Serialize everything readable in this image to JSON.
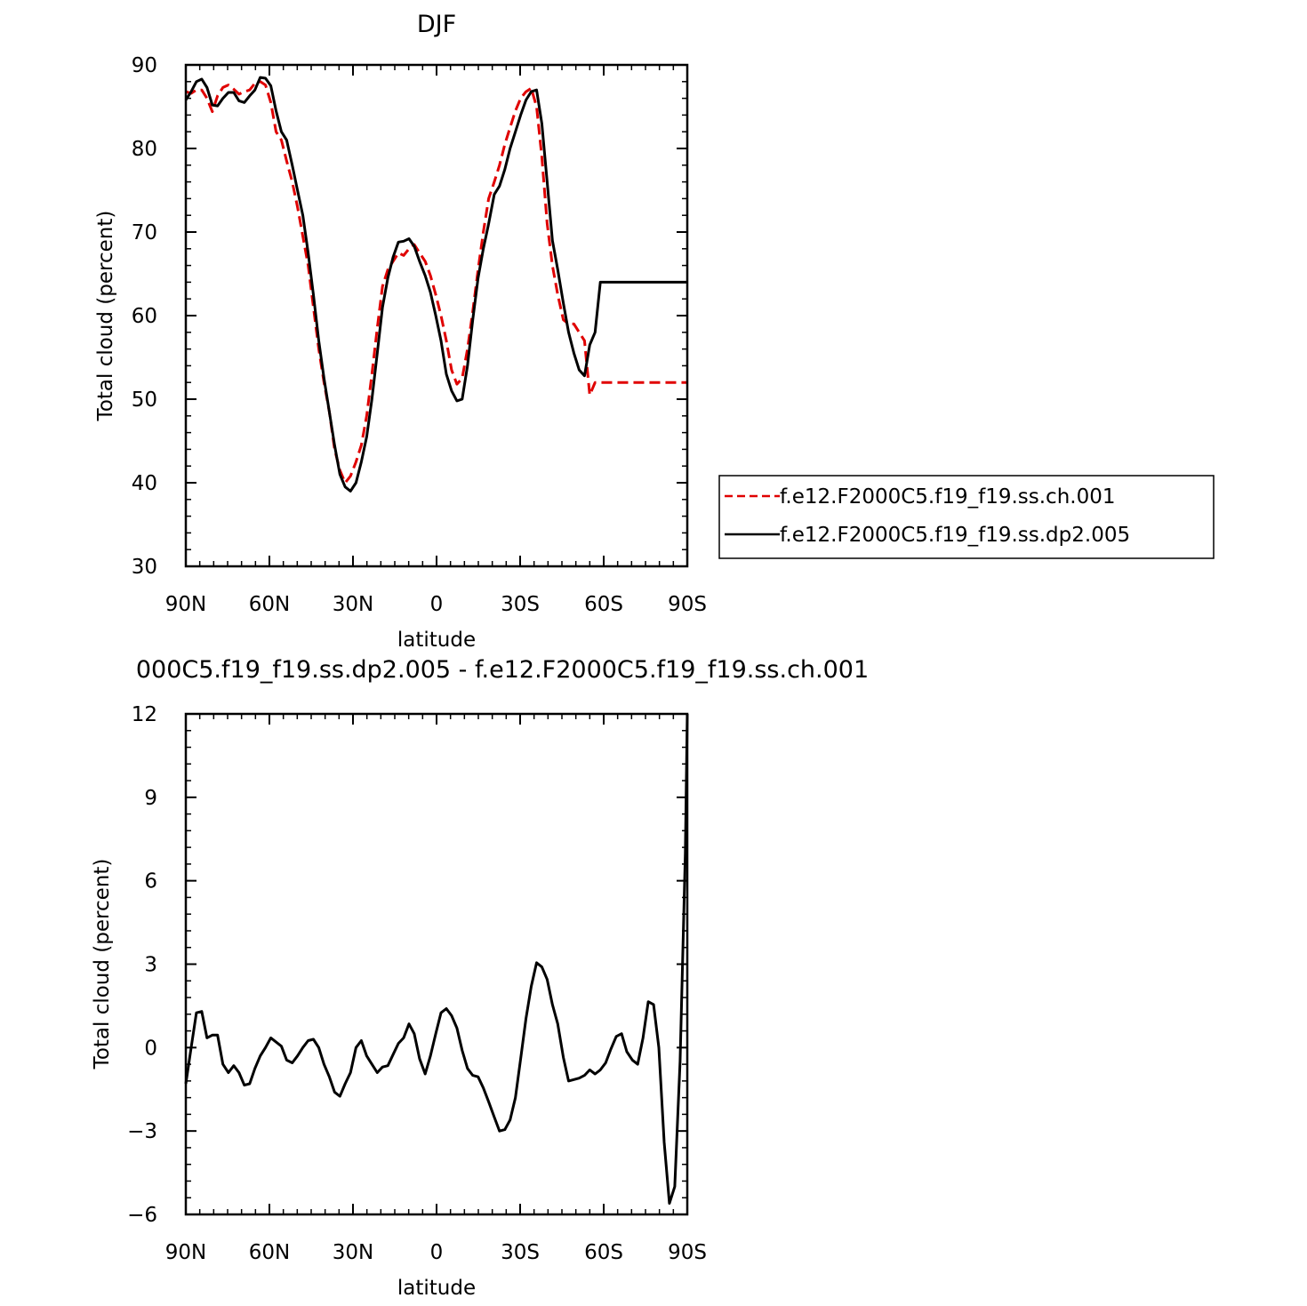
{
  "chart_data": [
    {
      "type": "line",
      "title": "DJF",
      "xlabel": "latitude",
      "ylabel": "Total cloud (percent)",
      "xlim": [
        -90,
        90
      ],
      "ylim": [
        30,
        90
      ],
      "xticks": [
        -90,
        -60,
        -30,
        0,
        30,
        60,
        90
      ],
      "xtick_labels": [
        "90N",
        "60N",
        "30N",
        "0",
        "30S",
        "60S",
        "90S"
      ],
      "yticks": [
        30,
        40,
        50,
        60,
        70,
        80,
        90
      ],
      "ytick_labels": [
        "30",
        "40",
        "50",
        "60",
        "70",
        "80",
        "90"
      ],
      "legend_position": "right",
      "x": [
        -90,
        -88.1,
        -86.2,
        -84.3,
        -82.4,
        -80.5,
        -78.6,
        -76.7,
        -74.7,
        -72.8,
        -70.9,
        -69.0,
        -67.1,
        -65.2,
        -63.3,
        -61.4,
        -59.5,
        -57.6,
        -55.7,
        -53.8,
        -51.8,
        -49.9,
        -48.0,
        -46.1,
        -44.2,
        -42.3,
        -40.4,
        -38.5,
        -36.6,
        -34.7,
        -32.8,
        -30.9,
        -28.9,
        -27.0,
        -25.1,
        -23.2,
        -21.3,
        -19.4,
        -17.5,
        -15.6,
        -13.7,
        -11.8,
        -9.9,
        -8.0,
        -6.1,
        -4.1,
        -2.2,
        -0.3,
        1.6,
        3.5,
        5.4,
        7.3,
        9.2,
        11.1,
        13.0,
        14.9,
        16.8,
        18.7,
        20.7,
        22.6,
        24.5,
        26.4,
        28.3,
        30.2,
        32.1,
        34.0,
        35.9,
        37.8,
        39.7,
        41.6,
        43.5,
        45.5,
        47.4,
        49.3,
        51.2,
        53.1,
        55.0,
        56.9,
        58.8,
        60.7,
        62.6,
        64.5,
        66.4,
        68.3,
        70.3,
        72.2,
        74.1,
        76.0,
        77.9,
        79.8,
        81.7,
        83.6,
        85.5,
        87.4,
        89.3,
        90
      ],
      "series": [
        {
          "name": "f.e12.F2000C5.f19_f19.ss.ch.001",
          "color": "#e00000",
          "dash": "dashed",
          "values": [
            86.8,
            86.6,
            87.0,
            87.0,
            86.0,
            84.4,
            86.3,
            87.3,
            87.6,
            87.1,
            86.5,
            86.8,
            87.0,
            87.8,
            88.0,
            87.6,
            85.5,
            82.0,
            81.0,
            78.5,
            76.0,
            73.0,
            69.5,
            66.0,
            61.0,
            56.0,
            52.0,
            48.5,
            44.0,
            41.5,
            40.0,
            40.8,
            42.5,
            44.5,
            48.0,
            53.0,
            58.5,
            63.5,
            65.5,
            66.5,
            67.5,
            67.2,
            68.0,
            68.5,
            67.5,
            66.5,
            64.8,
            62.5,
            60.0,
            57.0,
            53.5,
            51.8,
            52.5,
            56.0,
            60.5,
            65.5,
            70.0,
            74.0,
            76.0,
            78.0,
            80.5,
            82.5,
            84.5,
            86.0,
            86.8,
            87.2,
            85.0,
            79.0,
            71.0,
            66.0,
            62.5,
            59.5,
            59.0,
            59.0,
            58.0,
            57.0,
            50.5,
            52.0,
            52.0,
            52.0,
            52.0,
            52.0,
            52.0,
            52.0,
            52.0,
            52.0,
            52.0,
            52.0,
            52.0,
            52.0,
            52.0,
            52.0,
            52.0,
            52.0,
            52.0,
            52.0
          ]
        },
        {
          "name": "f.e12.F2000C5.f19_f19.ss.dp2.005",
          "color": "#000000",
          "dash": "solid",
          "values": [
            85.8,
            86.8,
            88.0,
            88.3,
            87.3,
            85.2,
            85.1,
            86.0,
            86.7,
            86.7,
            85.7,
            85.5,
            86.3,
            87.0,
            88.5,
            88.4,
            87.5,
            84.5,
            82.0,
            81.0,
            78.0,
            75.0,
            72.0,
            67.5,
            62.5,
            57.0,
            52.5,
            48.5,
            44.5,
            41.0,
            39.5,
            39.0,
            40.0,
            42.5,
            45.5,
            50.0,
            55.5,
            61.0,
            64.5,
            67.0,
            68.8,
            68.9,
            69.2,
            68.3,
            66.5,
            64.8,
            62.8,
            60.0,
            57.0,
            53.0,
            51.0,
            49.8,
            50.0,
            54.0,
            59.5,
            64.5,
            68.0,
            71.0,
            74.5,
            75.5,
            77.5,
            80.0,
            82.0,
            84.0,
            85.8,
            86.8,
            87.0,
            83.0,
            76.0,
            69.0,
            65.5,
            61.5,
            58.0,
            55.5,
            53.5,
            52.8,
            56.5,
            58.0,
            64.0,
            64.0,
            64.0,
            64.0,
            64.0,
            64.0,
            64.0,
            64.0,
            64.0,
            64.0,
            64.0,
            64.0,
            64.0,
            64.0,
            64.0,
            64.0,
            64.0,
            64.0
          ]
        }
      ]
    },
    {
      "type": "line",
      "title": "000C5.f19_f19.ss.dp2.005 - f.e12.F2000C5.f19_f19.ss.ch.001",
      "xlabel": "latitude",
      "ylabel": "Total cloud (percent)",
      "xlim": [
        -90,
        90
      ],
      "ylim": [
        -6,
        12
      ],
      "xticks": [
        -90,
        -60,
        -30,
        0,
        30,
        60,
        90
      ],
      "xtick_labels": [
        "90N",
        "60N",
        "30N",
        "0",
        "30S",
        "60S",
        "90S"
      ],
      "yticks": [
        -6,
        -3,
        0,
        3,
        6,
        9,
        12
      ],
      "ytick_labels": [
        "−6",
        "−3",
        "0",
        "3",
        "6",
        "9",
        "12"
      ],
      "series": [
        {
          "color": "#000000",
          "dash": "solid",
          "x": [
            -90,
            -88.1,
            -86.2,
            -84.3,
            -82.4,
            -80.5,
            -78.6,
            -76.7,
            -74.7,
            -72.8,
            -70.9,
            -69.0,
            -67.1,
            -65.2,
            -63.3,
            -61.4,
            -59.5,
            -57.6,
            -55.7,
            -53.8,
            -51.8,
            -49.9,
            -48.0,
            -46.1,
            -44.2,
            -42.3,
            -40.4,
            -38.5,
            -36.6,
            -34.7,
            -32.8,
            -30.9,
            -28.9,
            -27.0,
            -25.1,
            -23.2,
            -21.3,
            -19.4,
            -17.5,
            -15.6,
            -13.7,
            -11.8,
            -9.9,
            -8.0,
            -6.1,
            -4.1,
            -2.2,
            -0.3,
            1.6,
            3.5,
            5.4,
            7.3,
            9.2,
            11.1,
            13.0,
            14.9,
            16.8,
            18.7,
            20.7,
            22.6,
            24.5,
            26.4,
            28.3,
            30.2,
            32.1,
            34.0,
            35.9,
            37.8,
            39.7,
            41.6,
            43.5,
            45.5,
            47.4,
            49.3,
            51.2,
            53.1,
            55.0,
            56.9,
            58.8,
            60.7,
            62.6,
            64.5,
            66.4,
            68.3,
            70.3,
            72.2,
            74.1,
            76.0,
            77.9,
            79.8,
            81.7,
            83.6,
            85.5,
            87.4,
            89.3,
            90
          ],
          "values": [
            -1.3,
            0.0,
            1.25,
            1.3,
            0.35,
            0.45,
            0.45,
            -0.6,
            -0.9,
            -0.65,
            -0.9,
            -1.35,
            -1.3,
            -0.75,
            -0.3,
            0.0,
            0.35,
            0.2,
            0.05,
            -0.45,
            -0.55,
            -0.3,
            0.0,
            0.25,
            0.3,
            0.0,
            -0.6,
            -1.05,
            -1.6,
            -1.75,
            -1.3,
            -0.9,
            0.0,
            0.25,
            -0.3,
            -0.6,
            -0.9,
            -0.7,
            -0.65,
            -0.25,
            0.15,
            0.35,
            0.85,
            0.5,
            -0.4,
            -0.95,
            -0.3,
            0.5,
            1.25,
            1.4,
            1.15,
            0.7,
            -0.1,
            -0.75,
            -1.0,
            -1.05,
            -1.45,
            -1.95,
            -2.5,
            -3.0,
            -2.95,
            -2.6,
            -1.8,
            -0.4,
            1.05,
            2.2,
            3.05,
            2.9,
            2.45,
            1.55,
            0.85,
            -0.35,
            -1.2,
            -1.15,
            -1.1,
            -1.0,
            -0.8,
            -0.95,
            -0.8,
            -0.55,
            -0.05,
            0.4,
            0.5,
            -0.15,
            -0.45,
            -0.6,
            0.35,
            1.65,
            1.55,
            0.0,
            -3.4,
            -5.6,
            -5.0,
            -0.5,
            7.0,
            12.0
          ]
        }
      ]
    }
  ]
}
